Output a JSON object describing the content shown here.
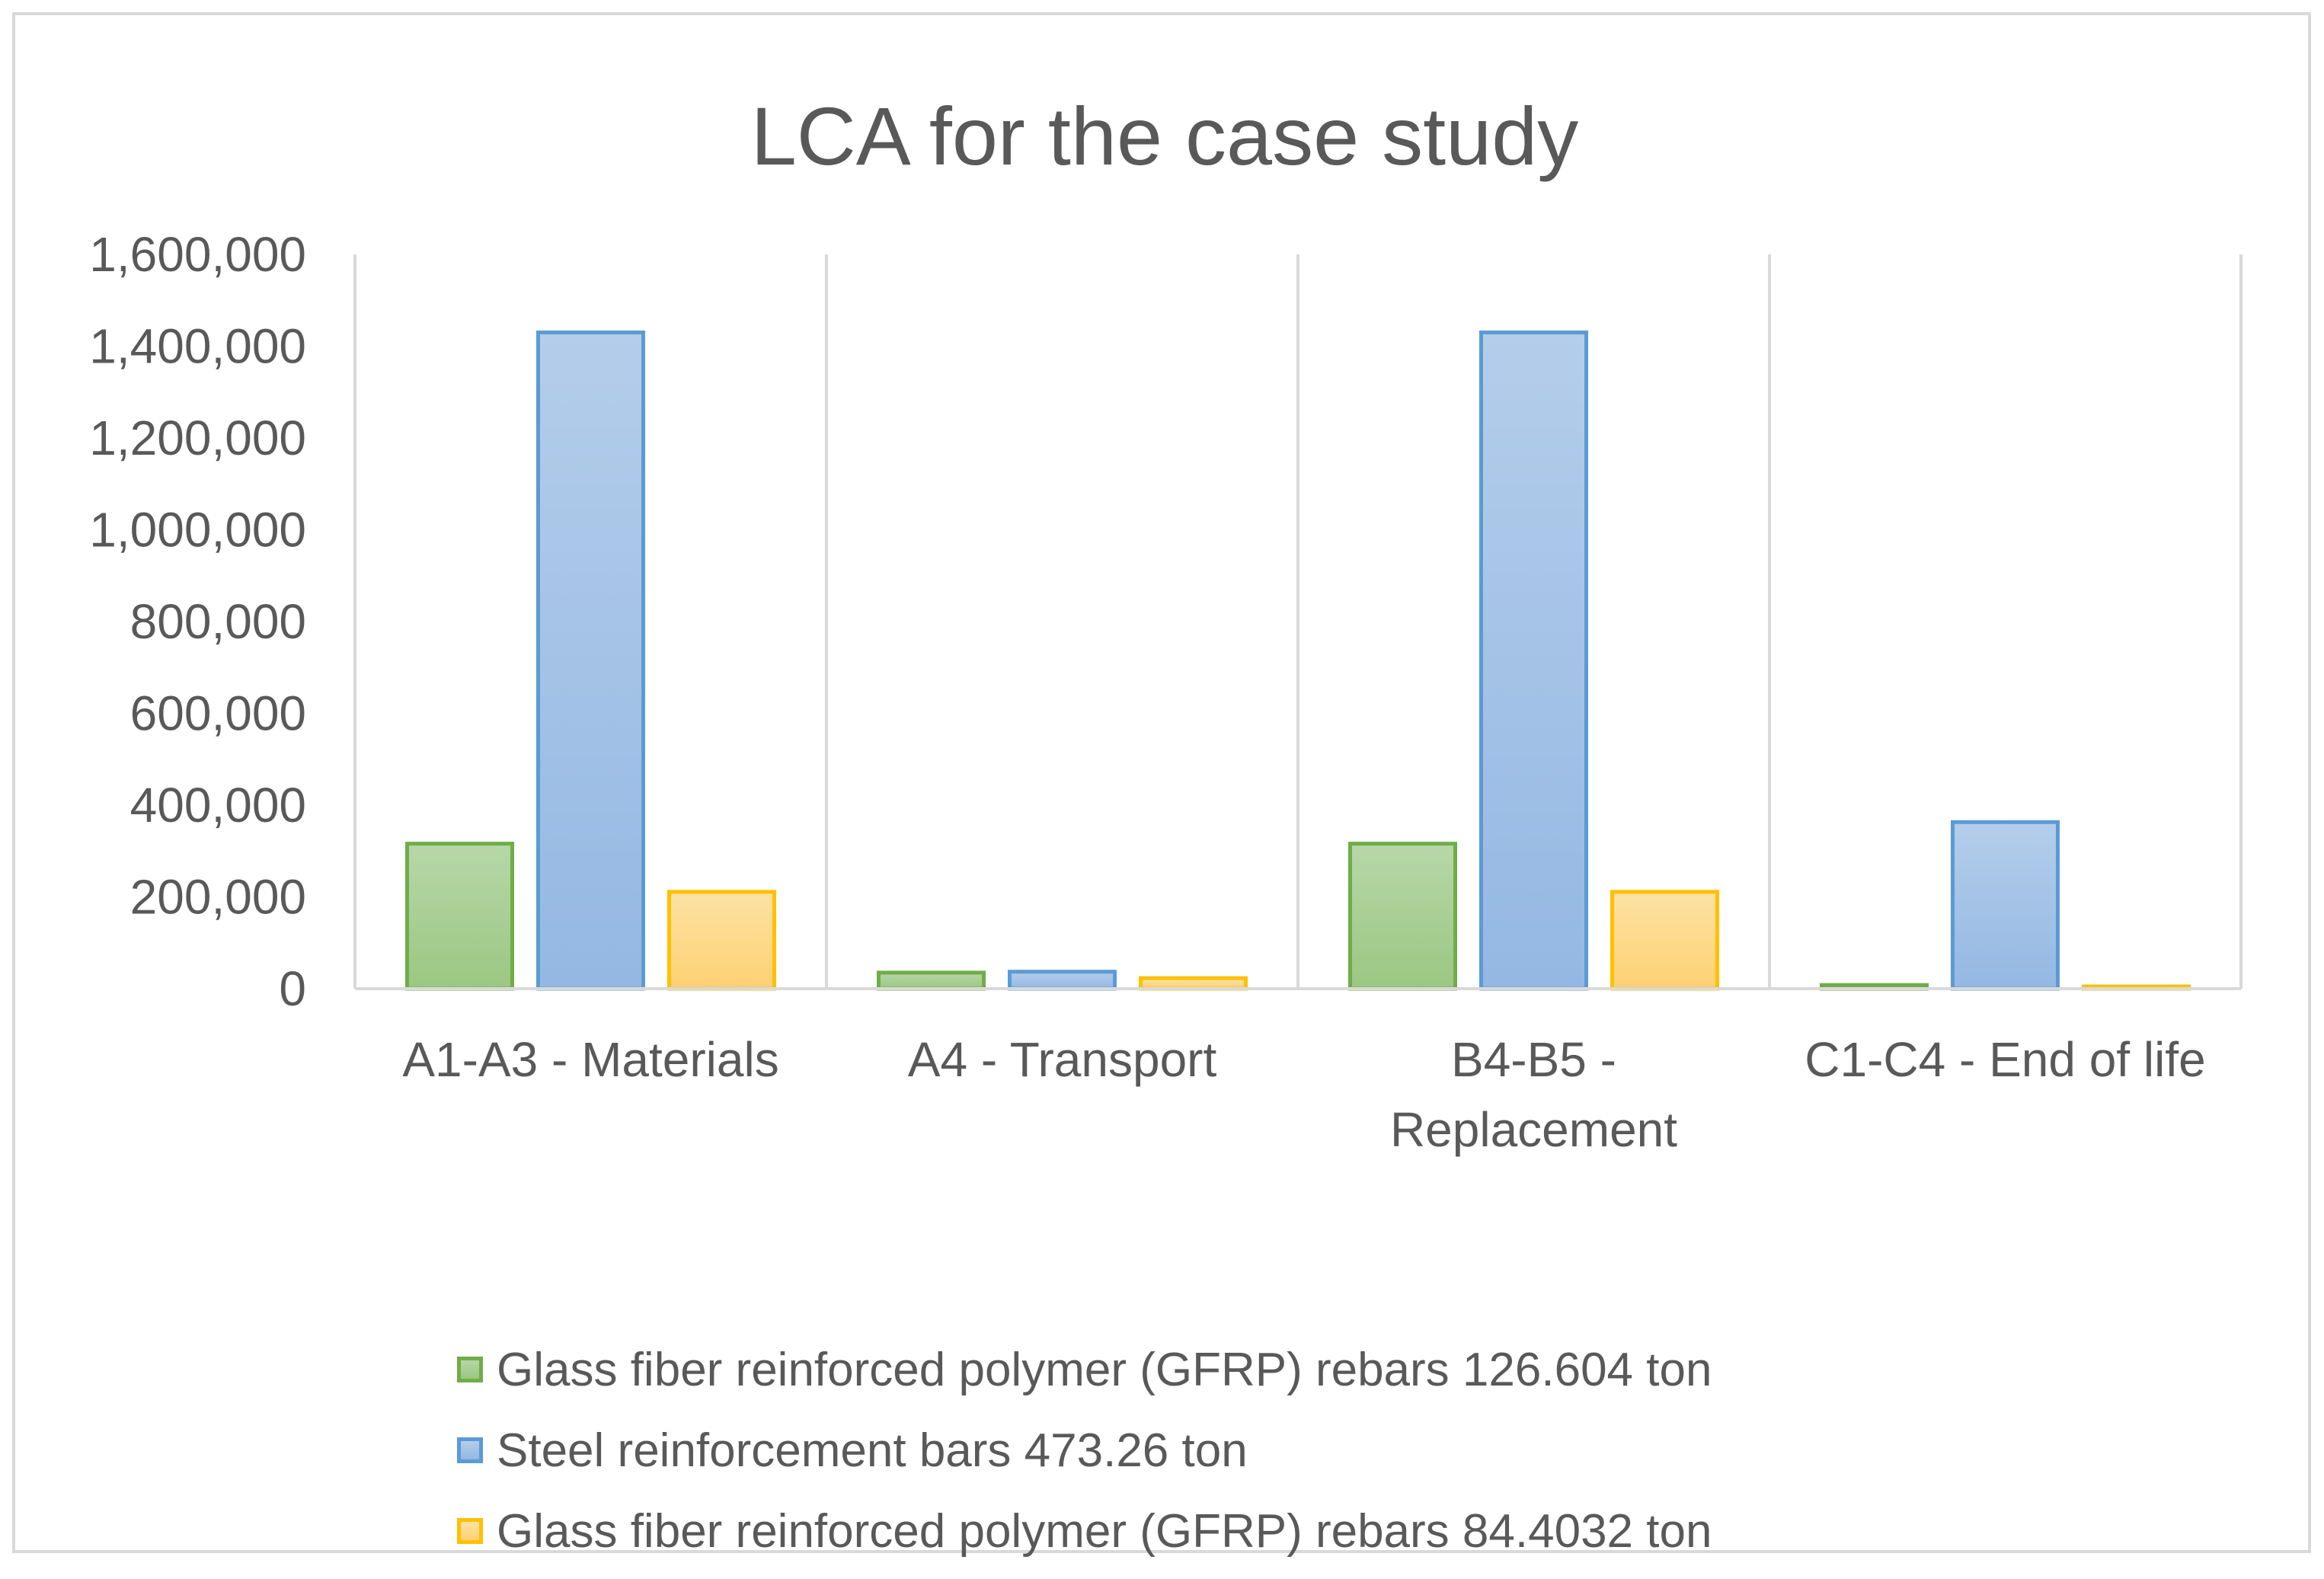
{
  "chart_data": {
    "type": "bar",
    "title": "LCA for the case study",
    "categories": [
      [
        "A1-A3 - Materials"
      ],
      [
        "A4 - Transport"
      ],
      [
        "B4-B5 -",
        "Replacement"
      ],
      [
        "C1-C4 - End of life"
      ]
    ],
    "series": [
      {
        "name": "Glass fiber reinforced polymer (GFRP) rebars 126.604 ton",
        "values": [
          316000,
          35000,
          316000,
          8000
        ],
        "fill_top": "#b7d7a8",
        "fill_bottom": "#9bc782",
        "stroke": "#70ad47"
      },
      {
        "name": "Steel reinforcement bars 473.26 ton",
        "values": [
          1430000,
          37000,
          1430000,
          363000
        ],
        "fill_top": "#b4cdea",
        "fill_bottom": "#94b8e3",
        "stroke": "#5b9bd5"
      },
      {
        "name": "Glass fiber reinforced polymer (GFRP) rebars 84.4032 ton",
        "values": [
          211000,
          23000,
          211000,
          5000
        ],
        "fill_top": "#fde2a4",
        "fill_bottom": "#fdd173",
        "stroke": "#ffc000"
      }
    ],
    "ylim": [
      0,
      1600000
    ],
    "yticks": [
      {
        "value": 0,
        "label": "0"
      },
      {
        "value": 200000,
        "label": "200,000"
      },
      {
        "value": 400000,
        "label": "400,000"
      },
      {
        "value": 600000,
        "label": "600,000"
      },
      {
        "value": 800000,
        "label": "800,000"
      },
      {
        "value": 1000000,
        "label": "1,000,000"
      },
      {
        "value": 1200000,
        "label": "1,200,000"
      },
      {
        "value": 1400000,
        "label": "1,400,000"
      },
      {
        "value": 1600000,
        "label": "1,600,000"
      }
    ],
    "xlabel": "",
    "ylabel": "",
    "legend_position": "bottom"
  }
}
